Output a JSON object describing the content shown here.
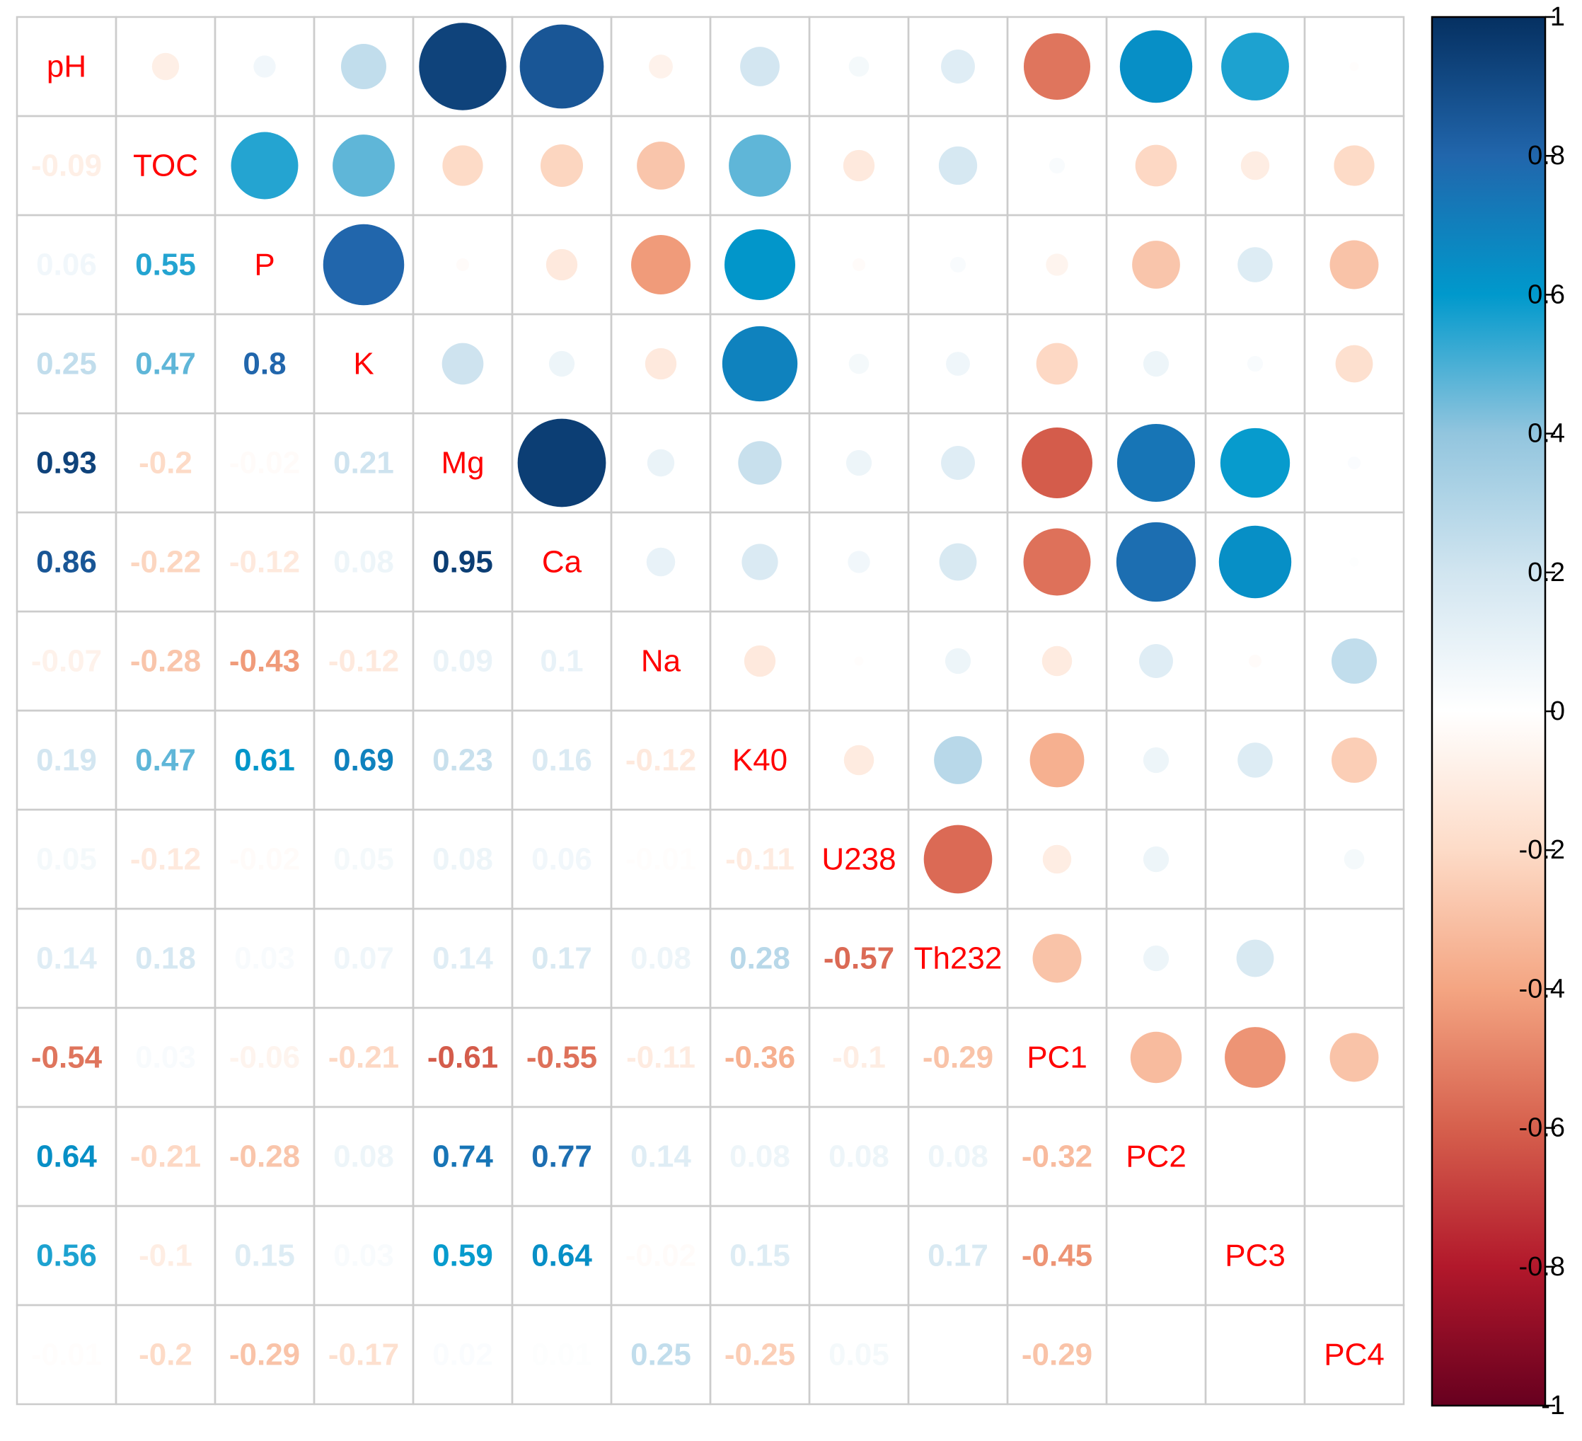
{
  "chart_data": {
    "type": "heatmap",
    "subtype": "correlation-matrix (mixed: circles upper, numbers lower)",
    "variables": [
      "pH",
      "TOC",
      "P",
      "K",
      "Mg",
      "Ca",
      "Na",
      "K40",
      "U238",
      "Th232",
      "PC1",
      "PC2",
      "PC3",
      "PC4"
    ],
    "lower_labels": [
      [
        "-0.09"
      ],
      [
        "0.06",
        "0.55"
      ],
      [
        "0.25",
        "0.47",
        "0.8"
      ],
      [
        "0.93",
        "-0.2",
        "-0.02",
        "0.21"
      ],
      [
        "0.86",
        "-0.22",
        "-0.12",
        "0.08",
        "0.95"
      ],
      [
        "-0.07",
        "-0.28",
        "-0.43",
        "-0.12",
        "0.09",
        "0.1"
      ],
      [
        "0.19",
        "0.47",
        "0.61",
        "0.69",
        "0.23",
        "0.16",
        "-0.12"
      ],
      [
        "0.05",
        "-0.12",
        "-0.02",
        "0.05",
        "0.08",
        "0.06",
        "-0.01",
        "-0.11"
      ],
      [
        "0.14",
        "0.18",
        "0.03",
        "0.07",
        "0.14",
        "0.17",
        "0.08",
        "0.28",
        "-0.57"
      ],
      [
        "-0.54",
        "0.03",
        "-0.06",
        "-0.21",
        "-0.61",
        "-0.55",
        "-0.11",
        "-0.36",
        "-0.1",
        "-0.29"
      ],
      [
        "0.64",
        "-0.21",
        "-0.28",
        "0.08",
        "0.74",
        "0.77",
        "0.14",
        "0.08",
        "0.08",
        "0.08",
        "-0.32"
      ],
      [
        "0.56",
        "-0.1",
        "0.15",
        "0.03",
        "0.59",
        "0.64",
        "-0.02",
        "0.15",
        "0",
        "0.17",
        "-0.45",
        "0"
      ],
      [
        "-0.01",
        "-0.2",
        "-0.29",
        "-0.17",
        "0.02",
        "0.01",
        "0.25",
        "-0.25",
        "0.05",
        "0",
        "-0.29",
        "0",
        "0"
      ]
    ],
    "hidden_cells": [
      [
        12,
        8
      ],
      [
        12,
        11
      ],
      [
        13,
        9
      ],
      [
        13,
        11
      ],
      [
        13,
        12
      ]
    ],
    "colorbar": {
      "range": [
        -1,
        1
      ],
      "ticks": [
        "1",
        "0.8",
        "0.6",
        "0.4",
        "0.2",
        "0",
        "-0.2",
        "-0.4",
        "-0.6",
        "-0.8",
        "-1"
      ],
      "tick_values": [
        1,
        0.8,
        0.6,
        0.4,
        0.2,
        0,
        -0.2,
        -0.4,
        -0.6,
        -0.8,
        -1
      ],
      "position": "right"
    },
    "title": "",
    "xlabel": "",
    "ylabel": ""
  },
  "colors": {
    "label_color": "#FF0000",
    "grid_color": "#CCCCCC",
    "scale": [
      "#67001F",
      "#B2182B",
      "#D6604D",
      "#F4A582",
      "#FDDBC7",
      "#FFFFFF",
      "#D1E5F0",
      "#92C5DE",
      "#4393C3",
      "#2166AC",
      "#053061"
    ]
  }
}
